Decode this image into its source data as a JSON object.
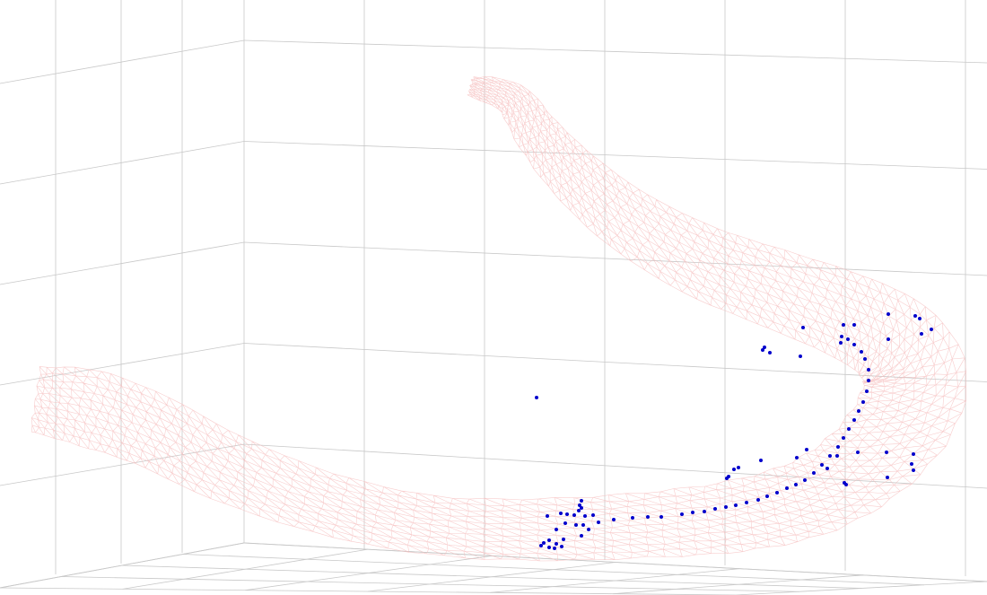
{
  "scene": {
    "view": "3d-perspective",
    "grid": true,
    "surface_render": "wireframe",
    "point_count": 96
  },
  "colors": {
    "background": "#ffffff",
    "grid_line": "#c8c8c8",
    "mesh_wire": "#f6bcbc",
    "points": "#0000cc"
  },
  "icons": {
    "surface": "wireframe-mesh",
    "points": "dot-marker"
  }
}
